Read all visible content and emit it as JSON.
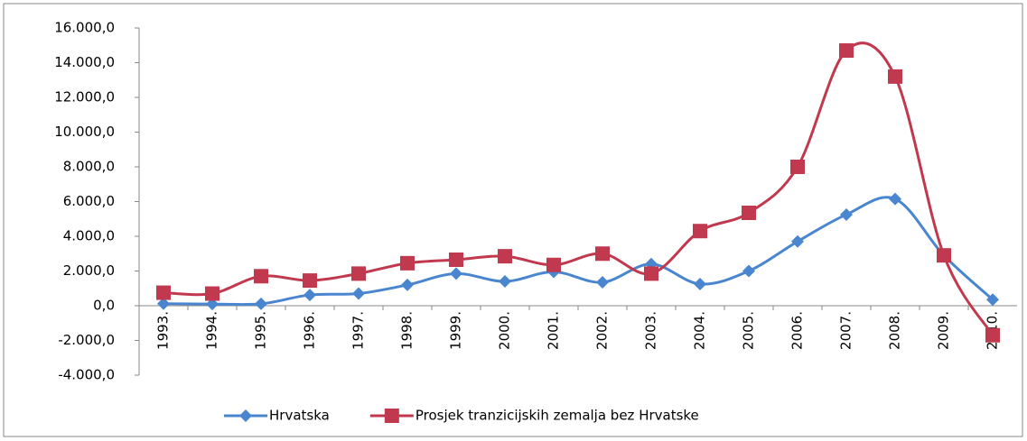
{
  "chart_data": {
    "type": "line",
    "categories": [
      "1993.",
      "1994.",
      "1995.",
      "1996.",
      "1997.",
      "1998.",
      "1999.",
      "2000.",
      "2001.",
      "2002.",
      "2003.",
      "2004.",
      "2005.",
      "2006.",
      "2007.",
      "2008.",
      "2009.",
      "2010."
    ],
    "series": [
      {
        "name": "Hrvatska",
        "color": "#4a86d0",
        "marker": "diamond",
        "values": [
          120,
          100,
          110,
          620,
          700,
          1200,
          1850,
          1400,
          1950,
          1350,
          2400,
          1250,
          2000,
          3700,
          5250,
          6150,
          2900,
          350
        ]
      },
      {
        "name": "Prosjek tranzicijskih zemalja bez Hrvatske",
        "color": "#c0394e",
        "marker": "square",
        "values": [
          750,
          700,
          1700,
          1450,
          1850,
          2450,
          2650,
          2850,
          2350,
          3000,
          1850,
          4300,
          5350,
          8000,
          14700,
          13200,
          2900,
          -1700
        ]
      }
    ],
    "ylim": [
      -4000,
      16000
    ],
    "yticks": [
      {
        "value": -4000,
        "label": "-4.000,0"
      },
      {
        "value": -2000,
        "label": "-2.000,0"
      },
      {
        "value": 0,
        "label": "0,0"
      },
      {
        "value": 2000,
        "label": "2.000,0"
      },
      {
        "value": 4000,
        "label": "4.000,0"
      },
      {
        "value": 6000,
        "label": "6.000,0"
      },
      {
        "value": 8000,
        "label": "8.000,0"
      },
      {
        "value": 10000,
        "label": "10.000,0"
      },
      {
        "value": 12000,
        "label": "12.000,0"
      },
      {
        "value": 14000,
        "label": "14.000,0"
      },
      {
        "value": 16000,
        "label": "16.000,0"
      }
    ],
    "tick_label_color": "#000000",
    "negative_tick_label_color": "#ff0000",
    "grid": false,
    "legend": "bottom"
  }
}
